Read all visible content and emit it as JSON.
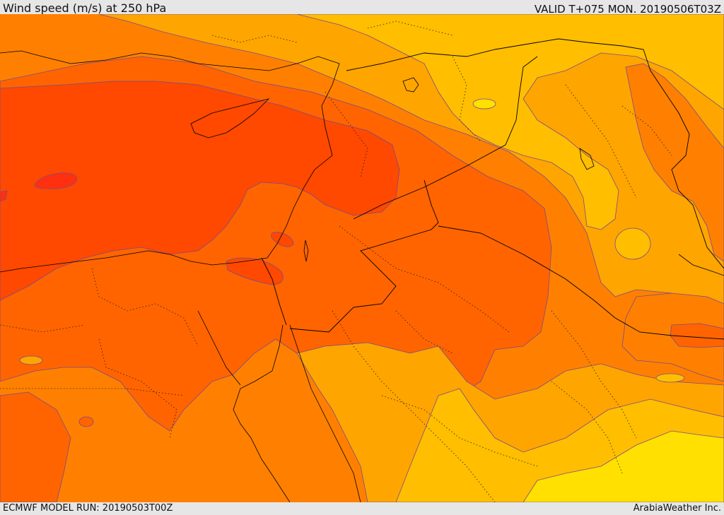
{
  "header": {
    "title": "Wind speed (m/s) at 250 hPa",
    "valid": "VALID T+075 MON. 20190506T03Z"
  },
  "footer": {
    "model_run": "ECMWF MODEL RUN: 20190503T00Z",
    "credit": "ArabiaWeather Inc."
  },
  "map": {
    "variable": "wind speed",
    "level": "250 hPa",
    "colors": {
      "lowest": "#ffe000",
      "low": "#ffbe00",
      "mid_low": "#ffa500",
      "mid": "#ff8000",
      "mid_high": "#ff6400",
      "high": "#ff4800",
      "highest": "#ff3010",
      "contour": "#7a4b8a",
      "border": "#000000"
    }
  }
}
